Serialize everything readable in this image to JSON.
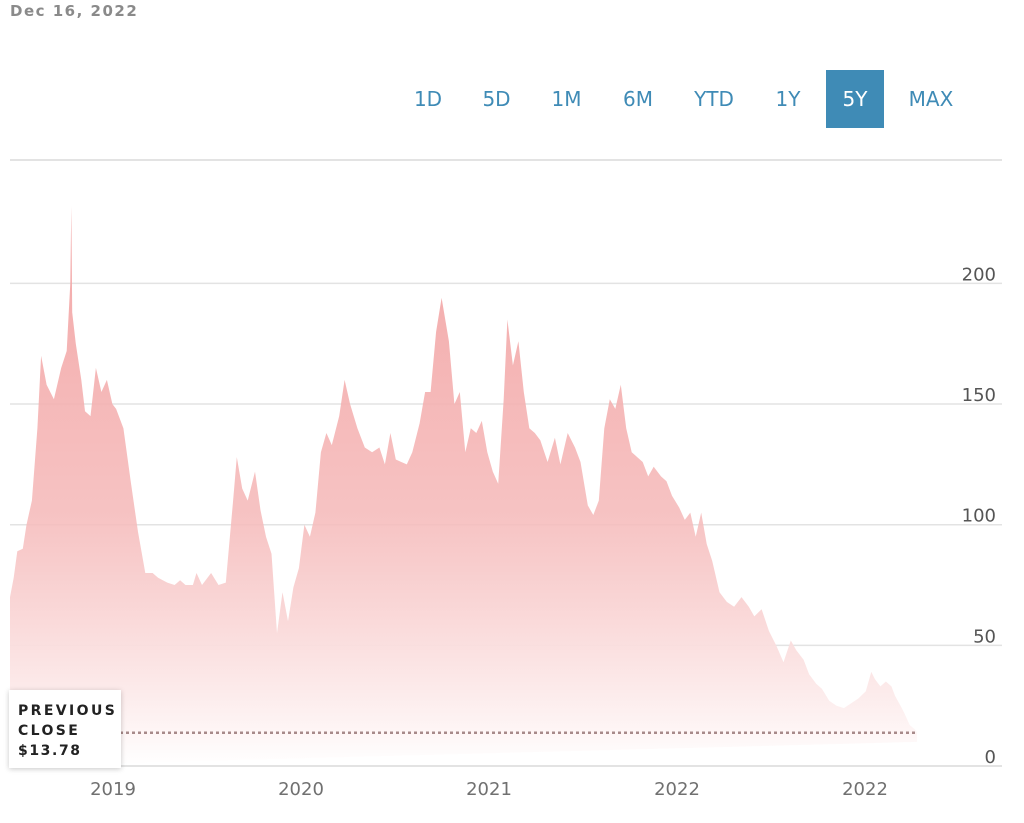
{
  "header": {
    "date": "Dec 16, 2022"
  },
  "range_buttons": [
    {
      "label": "1D",
      "active": false
    },
    {
      "label": "5D",
      "active": false
    },
    {
      "label": "1M",
      "active": false
    },
    {
      "label": "6M",
      "active": false
    },
    {
      "label": "YTD",
      "active": false
    },
    {
      "label": "1Y",
      "active": false
    },
    {
      "label": "5Y",
      "active": true
    },
    {
      "label": "MAX",
      "active": false
    }
  ],
  "previous_close": {
    "label": "PREVIOUS\nCLOSE",
    "value": "$13.78",
    "number": 13.78
  },
  "colors": {
    "accent": "#3f8bb6",
    "area_top": "#f2a2a2",
    "area_bottom": "#ffffff",
    "gridline": "#e3e3e3",
    "close_line": "#a78a8a"
  },
  "chart_data": {
    "type": "area",
    "title": "",
    "xlabel": "",
    "ylabel": "",
    "ylim": [
      0,
      230
    ],
    "y_ticks": [
      0,
      50,
      100,
      150,
      200
    ],
    "x_tick_labels": [
      "2019",
      "2020",
      "2021",
      "2022",
      "2022"
    ],
    "grid": true,
    "series": [
      {
        "values": [
          [
            2018.0,
            70
          ],
          [
            2018.02,
            78
          ],
          [
            2018.04,
            89
          ],
          [
            2018.07,
            90
          ],
          [
            2018.09,
            100
          ],
          [
            2018.12,
            110
          ],
          [
            2018.15,
            140
          ],
          [
            2018.17,
            170
          ],
          [
            2018.2,
            158
          ],
          [
            2018.24,
            152
          ],
          [
            2018.28,
            165
          ],
          [
            2018.31,
            172
          ],
          [
            2018.33,
            200
          ],
          [
            2018.335,
            232
          ],
          [
            2018.34,
            188
          ],
          [
            2018.36,
            175
          ],
          [
            2018.39,
            160
          ],
          [
            2018.41,
            147
          ],
          [
            2018.44,
            145
          ],
          [
            2018.47,
            165
          ],
          [
            2018.5,
            155
          ],
          [
            2018.53,
            160
          ],
          [
            2018.56,
            150
          ],
          [
            2018.58,
            148
          ],
          [
            2018.62,
            140
          ],
          [
            2018.66,
            118
          ],
          [
            2018.7,
            97
          ],
          [
            2018.74,
            80
          ],
          [
            2018.78,
            80
          ],
          [
            2018.81,
            78
          ],
          [
            2018.86,
            76
          ],
          [
            2018.9,
            75
          ],
          [
            2018.93,
            77
          ],
          [
            2018.96,
            75
          ],
          [
            2019.0,
            75
          ],
          [
            2019.02,
            80
          ],
          [
            2019.05,
            75
          ],
          [
            2019.1,
            80
          ],
          [
            2019.14,
            75
          ],
          [
            2019.18,
            76
          ],
          [
            2019.22,
            110
          ],
          [
            2019.24,
            128
          ],
          [
            2019.27,
            115
          ],
          [
            2019.3,
            110
          ],
          [
            2019.34,
            122
          ],
          [
            2019.37,
            106
          ],
          [
            2019.4,
            95
          ],
          [
            2019.43,
            88
          ],
          [
            2019.46,
            55
          ],
          [
            2019.49,
            72
          ],
          [
            2019.52,
            60
          ],
          [
            2019.55,
            74
          ],
          [
            2019.58,
            82
          ],
          [
            2019.61,
            100
          ],
          [
            2019.64,
            95
          ],
          [
            2019.67,
            105
          ],
          [
            2019.7,
            130
          ],
          [
            2019.73,
            138
          ],
          [
            2019.76,
            133
          ],
          [
            2019.8,
            145
          ],
          [
            2019.83,
            160
          ],
          [
            2019.86,
            150
          ],
          [
            2019.9,
            140
          ],
          [
            2019.94,
            132
          ],
          [
            2019.98,
            130
          ],
          [
            2020.02,
            132
          ],
          [
            2020.05,
            125
          ],
          [
            2020.08,
            138
          ],
          [
            2020.11,
            127
          ],
          [
            2020.14,
            126
          ],
          [
            2020.17,
            125
          ],
          [
            2020.2,
            130
          ],
          [
            2020.24,
            142
          ],
          [
            2020.27,
            155
          ],
          [
            2020.3,
            155
          ],
          [
            2020.33,
            180
          ],
          [
            2020.36,
            194
          ],
          [
            2020.4,
            176
          ],
          [
            2020.43,
            150
          ],
          [
            2020.46,
            155
          ],
          [
            2020.49,
            130
          ],
          [
            2020.52,
            140
          ],
          [
            2020.55,
            138
          ],
          [
            2020.58,
            143
          ],
          [
            2020.61,
            130
          ],
          [
            2020.64,
            122
          ],
          [
            2020.67,
            117
          ],
          [
            2020.7,
            152
          ],
          [
            2020.72,
            185
          ],
          [
            2020.75,
            166
          ],
          [
            2020.78,
            176
          ],
          [
            2020.81,
            155
          ],
          [
            2020.84,
            140
          ],
          [
            2020.87,
            138
          ],
          [
            2020.9,
            135
          ],
          [
            2020.94,
            126
          ],
          [
            2020.98,
            136
          ],
          [
            2021.01,
            125
          ],
          [
            2021.05,
            138
          ],
          [
            2021.09,
            132
          ],
          [
            2021.12,
            126
          ],
          [
            2021.16,
            108
          ],
          [
            2021.19,
            104
          ],
          [
            2021.22,
            110
          ],
          [
            2021.25,
            140
          ],
          [
            2021.28,
            152
          ],
          [
            2021.31,
            148
          ],
          [
            2021.34,
            158
          ],
          [
            2021.37,
            140
          ],
          [
            2021.4,
            130
          ],
          [
            2021.43,
            128
          ],
          [
            2021.46,
            126
          ],
          [
            2021.49,
            120
          ],
          [
            2021.52,
            124
          ],
          [
            2021.56,
            120
          ],
          [
            2021.59,
            118
          ],
          [
            2021.62,
            112
          ],
          [
            2021.66,
            107
          ],
          [
            2021.69,
            102
          ],
          [
            2021.72,
            105
          ],
          [
            2021.75,
            95
          ],
          [
            2021.78,
            105
          ],
          [
            2021.81,
            92
          ],
          [
            2021.84,
            85
          ],
          [
            2021.88,
            72
          ],
          [
            2021.92,
            68
          ],
          [
            2021.96,
            66
          ],
          [
            2022.0,
            70
          ],
          [
            2022.04,
            66
          ],
          [
            2022.07,
            62
          ],
          [
            2022.11,
            65
          ],
          [
            2022.15,
            56
          ],
          [
            2022.19,
            50
          ],
          [
            2022.23,
            43
          ],
          [
            2022.27,
            52
          ],
          [
            2022.3,
            48
          ],
          [
            2022.34,
            44
          ],
          [
            2022.37,
            38
          ],
          [
            2022.41,
            34
          ],
          [
            2022.44,
            32
          ],
          [
            2022.48,
            27
          ],
          [
            2022.52,
            25
          ],
          [
            2022.56,
            24
          ],
          [
            2022.6,
            26
          ],
          [
            2022.64,
            28
          ],
          [
            2022.68,
            31
          ],
          [
            2022.71,
            39
          ],
          [
            2022.73,
            36
          ],
          [
            2022.76,
            33
          ],
          [
            2022.79,
            35
          ],
          [
            2022.82,
            33
          ],
          [
            2022.84,
            29
          ],
          [
            2022.87,
            25
          ],
          [
            2022.89,
            22
          ],
          [
            2022.92,
            17
          ],
          [
            2022.95,
            15
          ],
          [
            2022.96,
            14
          ]
        ]
      }
    ],
    "previous_close": 13.78
  }
}
